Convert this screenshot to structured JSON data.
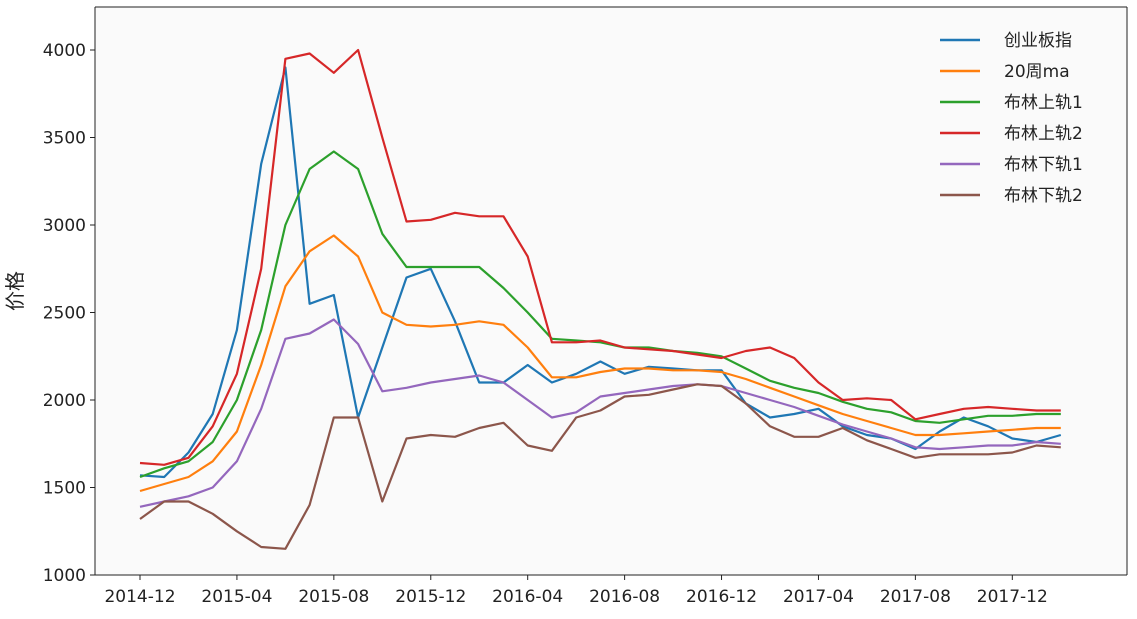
{
  "chart_data": {
    "type": "line",
    "title": "",
    "xlabel": "",
    "ylabel": "价格",
    "ylim": [
      1000,
      4200
    ],
    "xlim": [
      "2014-12",
      "2018-03"
    ],
    "grid": false,
    "legend_position": "top-right",
    "x_ticks": [
      "2014-12",
      "2015-04",
      "2015-08",
      "2015-12",
      "2016-04",
      "2016-08",
      "2016-12",
      "2017-04",
      "2017-08",
      "2017-12"
    ],
    "y_ticks": [
      1000,
      1500,
      2000,
      2500,
      3000,
      3500,
      4000
    ],
    "x": [
      "2014-12",
      "2015-01",
      "2015-02",
      "2015-03",
      "2015-04",
      "2015-05",
      "2015-06",
      "2015-07",
      "2015-08",
      "2015-09",
      "2015-10",
      "2015-11",
      "2015-12",
      "2016-01",
      "2016-02",
      "2016-03",
      "2016-04",
      "2016-05",
      "2016-06",
      "2016-07",
      "2016-08",
      "2016-09",
      "2016-10",
      "2016-11",
      "2016-12",
      "2017-01",
      "2017-02",
      "2017-03",
      "2017-04",
      "2017-05",
      "2017-06",
      "2017-07",
      "2017-08",
      "2017-09",
      "2017-10",
      "2017-11",
      "2017-12",
      "2018-01",
      "2018-02"
    ],
    "series": [
      {
        "name": "创业板指",
        "color": "#1f77b4",
        "values": [
          1570,
          1560,
          1700,
          1920,
          2400,
          3350,
          3900,
          2550,
          2600,
          1900,
          2300,
          2700,
          2750,
          2450,
          2100,
          2100,
          2200,
          2100,
          2150,
          2220,
          2150,
          2190,
          2180,
          2170,
          2170,
          1980,
          1900,
          1920,
          1950,
          1850,
          1800,
          1780,
          1720,
          1820,
          1900,
          1850,
          1780,
          1760,
          1800
        ]
      },
      {
        "name": "20周ma",
        "color": "#ff7f0e",
        "values": [
          1480,
          1520,
          1560,
          1650,
          1820,
          2200,
          2650,
          2850,
          2940,
          2820,
          2500,
          2430,
          2420,
          2430,
          2450,
          2430,
          2300,
          2130,
          2130,
          2160,
          2180,
          2180,
          2170,
          2170,
          2160,
          2120,
          2070,
          2020,
          1970,
          1920,
          1880,
          1840,
          1800,
          1800,
          1810,
          1820,
          1830,
          1840,
          1840
        ]
      },
      {
        "name": "布林上轨1",
        "color": "#2ca02c",
        "values": [
          1560,
          1610,
          1650,
          1760,
          2000,
          2400,
          3000,
          3320,
          3420,
          3320,
          2950,
          2760,
          2760,
          2760,
          2760,
          2640,
          2500,
          2350,
          2340,
          2330,
          2300,
          2300,
          2280,
          2270,
          2250,
          2180,
          2110,
          2070,
          2040,
          1990,
          1950,
          1930,
          1880,
          1870,
          1890,
          1910,
          1910,
          1920,
          1920
        ]
      },
      {
        "name": "布林上轨2",
        "color": "#d62728",
        "values": [
          1640,
          1630,
          1670,
          1850,
          2150,
          2750,
          3950,
          3980,
          3870,
          4000,
          3500,
          3020,
          3030,
          3070,
          3050,
          3050,
          2820,
          2330,
          2330,
          2340,
          2300,
          2290,
          2280,
          2260,
          2240,
          2280,
          2300,
          2240,
          2100,
          2000,
          2010,
          2000,
          1890,
          1920,
          1950,
          1960,
          1950,
          1940,
          1940
        ]
      },
      {
        "name": "布林下轨1",
        "color": "#9467bd",
        "values": [
          1390,
          1420,
          1450,
          1500,
          1650,
          1950,
          2350,
          2380,
          2460,
          2320,
          2050,
          2070,
          2100,
          2120,
          2140,
          2100,
          2000,
          1900,
          1930,
          2020,
          2040,
          2060,
          2080,
          2090,
          2080,
          2040,
          2000,
          1960,
          1910,
          1860,
          1820,
          1780,
          1730,
          1720,
          1730,
          1740,
          1740,
          1760,
          1750
        ]
      },
      {
        "name": "布林下轨2",
        "color": "#8c564b",
        "values": [
          1320,
          1420,
          1420,
          1350,
          1250,
          1160,
          1150,
          1400,
          1900,
          1900,
          1420,
          1780,
          1800,
          1790,
          1840,
          1870,
          1740,
          1710,
          1900,
          1940,
          2020,
          2030,
          2060,
          2090,
          2080,
          1980,
          1850,
          1790,
          1790,
          1840,
          1770,
          1720,
          1670,
          1690,
          1690,
          1690,
          1700,
          1740,
          1730
        ]
      }
    ]
  }
}
